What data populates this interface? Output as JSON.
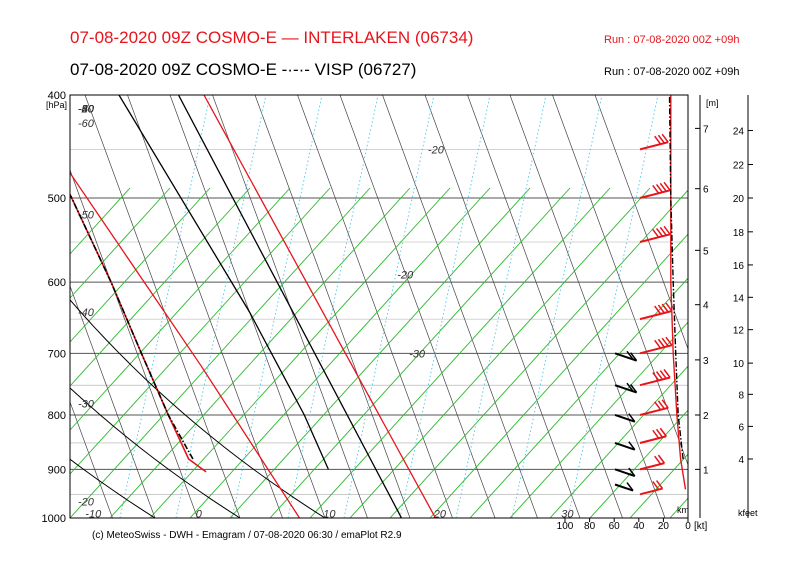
{
  "header": {
    "title_interlaken": "07-08-2020 09Z COSMO-E — INTERLAKEN (06734)",
    "title_visp": "07-08-2020 09Z COSMO-E -·-·- VISP (06727)",
    "run_interlaken": "Run : 07-08-2020 00Z +09h",
    "run_visp": "Run : 07-08-2020 00Z +09h"
  },
  "footer": "(c) MeteoSwiss - DWH - Emagram / 07-08-2020  06:30 / emaPlot R2.9",
  "colors": {
    "interlaken": "#e8141c",
    "visp": "#000000",
    "dry_adiabat": "#2fb82f",
    "moist_adiabat": "#000000",
    "mixing_ratio": "#48c8e8",
    "grid": "#6a6a6a"
  },
  "chart_data": {
    "type": "line",
    "diagram": "emagram",
    "x_axis": {
      "quantity": "temperature",
      "unit": "°C",
      "tick_labels": [
        "-60",
        "-50",
        "-40",
        "-30",
        "-20",
        "-10",
        "0",
        "10",
        "20",
        "30"
      ]
    },
    "y_axis": {
      "quantity": "pressure",
      "unit": "[hPa]",
      "scale": "log",
      "ylim": [
        1000,
        400
      ],
      "tick_labels": [
        "400",
        "500",
        "600",
        "700",
        "800",
        "900",
        "1000"
      ]
    },
    "height_axis_m": {
      "unit": "[m]",
      "tick_labels": [
        "1",
        "2",
        "3",
        "4",
        "5",
        "6",
        "7"
      ]
    },
    "height_axis_kfeet": {
      "unit": "kfeet",
      "tick_labels": [
        "4",
        "6",
        "8",
        "10",
        "12",
        "14",
        "16",
        "18",
        "20",
        "22",
        "24"
      ]
    },
    "wind_axis": {
      "unit": "[kt]",
      "km_label": "km",
      "tick_labels": [
        "100",
        "80",
        "60",
        "40",
        "20",
        "0"
      ]
    },
    "isotherm_labels": [
      {
        "text": "-60",
        "t": -60,
        "p": 412
      },
      {
        "text": "-50",
        "t": -50,
        "p": 412
      },
      {
        "text": "-40",
        "t": -40,
        "p": 412
      },
      {
        "text": "-30",
        "t": -30,
        "p": 412
      },
      {
        "text": "-20",
        "t": -20,
        "p": 412
      },
      {
        "text": "-60",
        "t": -75,
        "p": 425
      },
      {
        "text": "-50",
        "t": -63,
        "p": 518
      },
      {
        "text": "-40",
        "t": -55,
        "p": 640
      },
      {
        "text": "-30",
        "t": -47,
        "p": 780
      },
      {
        "text": "-20",
        "t": -37,
        "p": 965
      },
      {
        "text": "-10",
        "t": -18,
        "p": 990
      },
      {
        "text": "0",
        "t": -5,
        "p": 990
      },
      {
        "text": "10",
        "t": 10,
        "p": 990
      },
      {
        "text": "20",
        "t": 23,
        "p": 990
      },
      {
        "text": "30",
        "t": 38,
        "p": 990
      },
      {
        "text": "-20",
        "t": 29,
        "p": 590
      },
      {
        "text": "-30",
        "t": 27,
        "p": 700
      },
      {
        "text": "-20",
        "t": 38,
        "p": 450
      }
    ],
    "series": [
      {
        "name": "INTERLAKEN (06734)",
        "kind": "temperature",
        "style": "solid",
        "points": [
          [
            -2,
            905
          ],
          [
            -3.5,
            880
          ],
          [
            -4,
            800
          ],
          [
            -4.5,
            700
          ],
          [
            -5,
            600
          ],
          [
            -6,
            500
          ],
          [
            -7.5,
            420
          ],
          [
            -8,
            400
          ]
        ]
      },
      {
        "name": "INTERLAKEN (06734)",
        "kind": "dewpoint",
        "style": "dashed",
        "points": [
          [
            -21,
            910
          ],
          [
            -22,
            900
          ],
          [
            -25,
            880
          ],
          [
            -26,
            860
          ],
          [
            -26,
            800
          ],
          [
            -27,
            740
          ],
          [
            -27.5,
            690
          ],
          [
            -28,
            640
          ],
          [
            -30,
            590
          ],
          [
            -31.5,
            540
          ],
          [
            -33,
            500
          ],
          [
            -34,
            470
          ],
          [
            -35,
            440
          ],
          [
            -33,
            420
          ],
          [
            -28,
            400
          ]
        ]
      },
      {
        "name": "VISP (06727)",
        "kind": "temperature",
        "style": "dashdot",
        "points": [
          [
            -3,
            880
          ],
          [
            -4,
            800
          ],
          [
            -4.5,
            700
          ],
          [
            -5,
            600
          ],
          [
            -6,
            500
          ],
          [
            -7.5,
            420
          ],
          [
            -8,
            400
          ]
        ]
      },
      {
        "name": "VISP (06727)",
        "kind": "dewpoint",
        "style": "dashed",
        "points": [
          [
            -20,
            880
          ],
          [
            -24,
            860
          ],
          [
            -26,
            800
          ],
          [
            -27,
            740
          ],
          [
            -27.5,
            700
          ],
          [
            -27,
            640
          ],
          [
            -25.5,
            600
          ],
          [
            -26,
            560
          ],
          [
            -27,
            520
          ],
          [
            -29,
            500
          ],
          [
            -32,
            470
          ],
          [
            -36,
            440
          ],
          [
            -37.5,
            420
          ],
          [
            -37,
            400
          ]
        ]
      }
    ],
    "trajectories": [
      {
        "series": "INTERLAKEN (06734)",
        "points": [
          [
            -8,
            400
          ],
          [
            2,
            720
          ],
          [
            7,
            1000
          ]
        ]
      },
      {
        "series": "INTERLAKEN (06734)",
        "points": [
          [
            14,
            400
          ],
          [
            23,
            1000
          ]
        ]
      },
      {
        "series": "VISP (06727)",
        "points": [
          [
            11,
            400
          ],
          [
            19,
            1000
          ]
        ]
      },
      {
        "series": "VISP (06727)",
        "points": [
          [
            4,
            400
          ],
          [
            10,
            640
          ],
          [
            12,
            800
          ],
          [
            12.5,
            900
          ]
        ]
      }
    ],
    "wind_barbs": [
      {
        "series": "INTERLAKEN (06734)",
        "p": 450,
        "speed_kt": 30
      },
      {
        "series": "INTERLAKEN (06734)",
        "p": 500,
        "speed_kt": 35
      },
      {
        "series": "INTERLAKEN (06734)",
        "p": 550,
        "speed_kt": 35
      },
      {
        "series": "INTERLAKEN (06734)",
        "p": 650,
        "speed_kt": 40
      },
      {
        "series": "INTERLAKEN (06734)",
        "p": 700,
        "speed_kt": 40
      },
      {
        "series": "INTERLAKEN (06734)",
        "p": 750,
        "speed_kt": 35
      },
      {
        "series": "INTERLAKEN (06734)",
        "p": 800,
        "speed_kt": 30
      },
      {
        "series": "INTERLAKEN (06734)",
        "p": 850,
        "speed_kt": 25
      },
      {
        "series": "INTERLAKEN (06734)",
        "p": 900,
        "speed_kt": 20
      },
      {
        "series": "INTERLAKEN (06734)",
        "p": 950,
        "speed_kt": 15
      },
      {
        "series": "VISP (06727)",
        "p": 700,
        "speed_kt": 15
      },
      {
        "series": "VISP (06727)",
        "p": 750,
        "speed_kt": 15
      },
      {
        "series": "VISP (06727)",
        "p": 800,
        "speed_kt": 10
      },
      {
        "series": "VISP (06727)",
        "p": 850,
        "speed_kt": 10
      },
      {
        "series": "VISP (06727)",
        "p": 900,
        "speed_kt": 10
      },
      {
        "series": "VISP (06727)",
        "p": 930,
        "speed_kt": 5
      }
    ],
    "wind_speed_profiles": [
      {
        "series": "INTERLAKEN (06734)",
        "points": [
          [
            2,
            940
          ],
          [
            6,
            880
          ],
          [
            9,
            800
          ],
          [
            12,
            700
          ],
          [
            14,
            600
          ],
          [
            14,
            500
          ],
          [
            14,
            400
          ]
        ]
      },
      {
        "series": "VISP (06727)",
        "points": [
          [
            4,
            880
          ],
          [
            8,
            800
          ],
          [
            10,
            700
          ],
          [
            12,
            600
          ],
          [
            14,
            500
          ],
          [
            15,
            400
          ]
        ]
      }
    ],
    "grid": true
  }
}
